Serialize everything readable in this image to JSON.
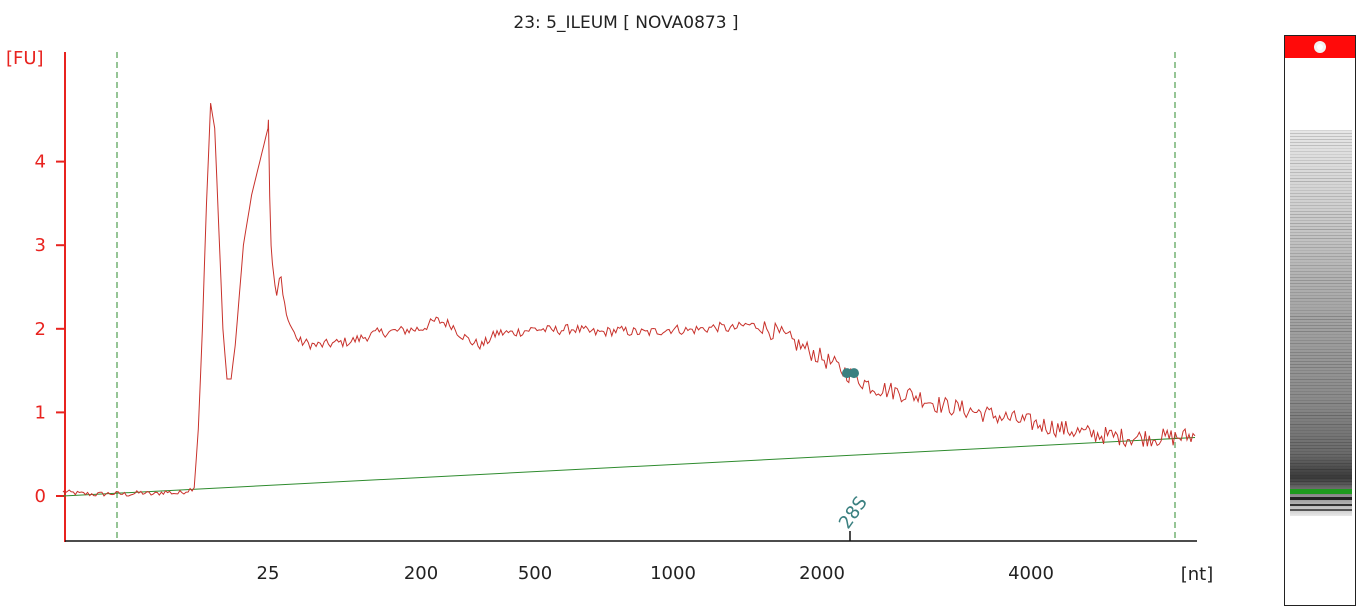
{
  "chart_data": {
    "type": "line",
    "title": "23: 5_ILEUM  [ NOVA0873 ]",
    "xlabel": "[nt]",
    "ylabel": "[FU]",
    "ylim": [
      -0.5,
      5.1
    ],
    "yticks": [
      "0",
      "1",
      "2",
      "3",
      "4"
    ],
    "xtick_labels": [
      "25",
      "200",
      "500",
      "1000",
      "2000",
      "4000"
    ],
    "grid": false,
    "legend": "none",
    "colors": {
      "trace": "#c8312b",
      "baseline": "#2e8b2e",
      "axes": "#e8231f",
      "peak": "#3a8080",
      "marker_lane": "#ff0a0a"
    },
    "peak_annotation": {
      "label": "28S",
      "position_nt": 2000
    },
    "series": [
      {
        "values": [
          [
            0,
            0.05
          ],
          [
            2,
            0.03
          ],
          [
            4,
            0.02
          ],
          [
            6,
            0.03
          ],
          [
            8,
            0.02
          ],
          [
            9.5,
            0.04
          ],
          [
            11,
            0.02
          ],
          [
            12.5,
            0.05
          ],
          [
            14,
            0.03
          ],
          [
            15,
            0.06
          ],
          [
            16,
            0.1
          ],
          [
            16.5,
            0.8
          ],
          [
            17,
            2.0
          ],
          [
            17.5,
            3.5
          ],
          [
            18,
            4.7
          ],
          [
            18.5,
            4.4
          ],
          [
            19,
            3.2
          ],
          [
            19.5,
            2.0
          ],
          [
            20,
            1.4
          ],
          [
            20.5,
            1.4
          ],
          [
            21,
            1.8
          ],
          [
            21.5,
            2.4
          ],
          [
            22,
            3.0
          ],
          [
            23,
            3.6
          ],
          [
            24,
            4.0
          ],
          [
            25,
            4.4
          ],
          [
            25.5,
            4.5
          ],
          [
            26,
            4.2
          ],
          [
            27,
            3.6
          ],
          [
            28.5,
            3.0
          ],
          [
            30,
            2.8
          ],
          [
            33,
            2.5
          ],
          [
            35,
            2.4
          ],
          [
            38,
            2.6
          ],
          [
            40,
            2.6
          ],
          [
            42,
            2.4
          ],
          [
            48,
            2.1
          ],
          [
            55,
            1.95
          ],
          [
            60,
            1.85
          ],
          [
            80,
            1.8
          ],
          [
            120,
            1.85
          ],
          [
            150,
            1.95
          ],
          [
            200,
            2.0
          ],
          [
            240,
            2.1
          ],
          [
            280,
            2.05
          ],
          [
            300,
            1.95
          ],
          [
            330,
            1.85
          ],
          [
            360,
            1.8
          ],
          [
            400,
            1.95
          ],
          [
            440,
            1.95
          ],
          [
            500,
            2.0
          ],
          [
            560,
            1.98
          ],
          [
            640,
            2.0
          ],
          [
            720,
            1.95
          ],
          [
            800,
            1.98
          ],
          [
            900,
            1.95
          ],
          [
            1000,
            2.0
          ],
          [
            1100,
            1.98
          ],
          [
            1200,
            2.0
          ],
          [
            1300,
            2.02
          ],
          [
            1400,
            2.0
          ],
          [
            1500,
            2.05
          ],
          [
            1600,
            2.02
          ],
          [
            1700,
            1.95
          ],
          [
            1800,
            1.85
          ],
          [
            1900,
            1.75
          ],
          [
            2000,
            1.65
          ],
          [
            2100,
            1.58
          ],
          [
            2200,
            1.5
          ],
          [
            2350,
            1.4
          ],
          [
            2500,
            1.3
          ],
          [
            2700,
            1.25
          ],
          [
            2900,
            1.2
          ],
          [
            3100,
            1.1
          ],
          [
            3300,
            1.05
          ],
          [
            3500,
            1.0
          ],
          [
            3700,
            0.95
          ],
          [
            3900,
            0.9
          ],
          [
            4100,
            0.85
          ],
          [
            4300,
            0.8
          ],
          [
            4500,
            0.75
          ],
          [
            4700,
            0.72
          ],
          [
            4900,
            0.7
          ],
          [
            5100,
            0.7
          ],
          [
            5300,
            0.7
          ],
          [
            5500,
            0.72
          ]
        ]
      }
    ],
    "baseline": [
      [
        0,
        0.0
      ],
      [
        5500,
        0.7
      ]
    ]
  }
}
